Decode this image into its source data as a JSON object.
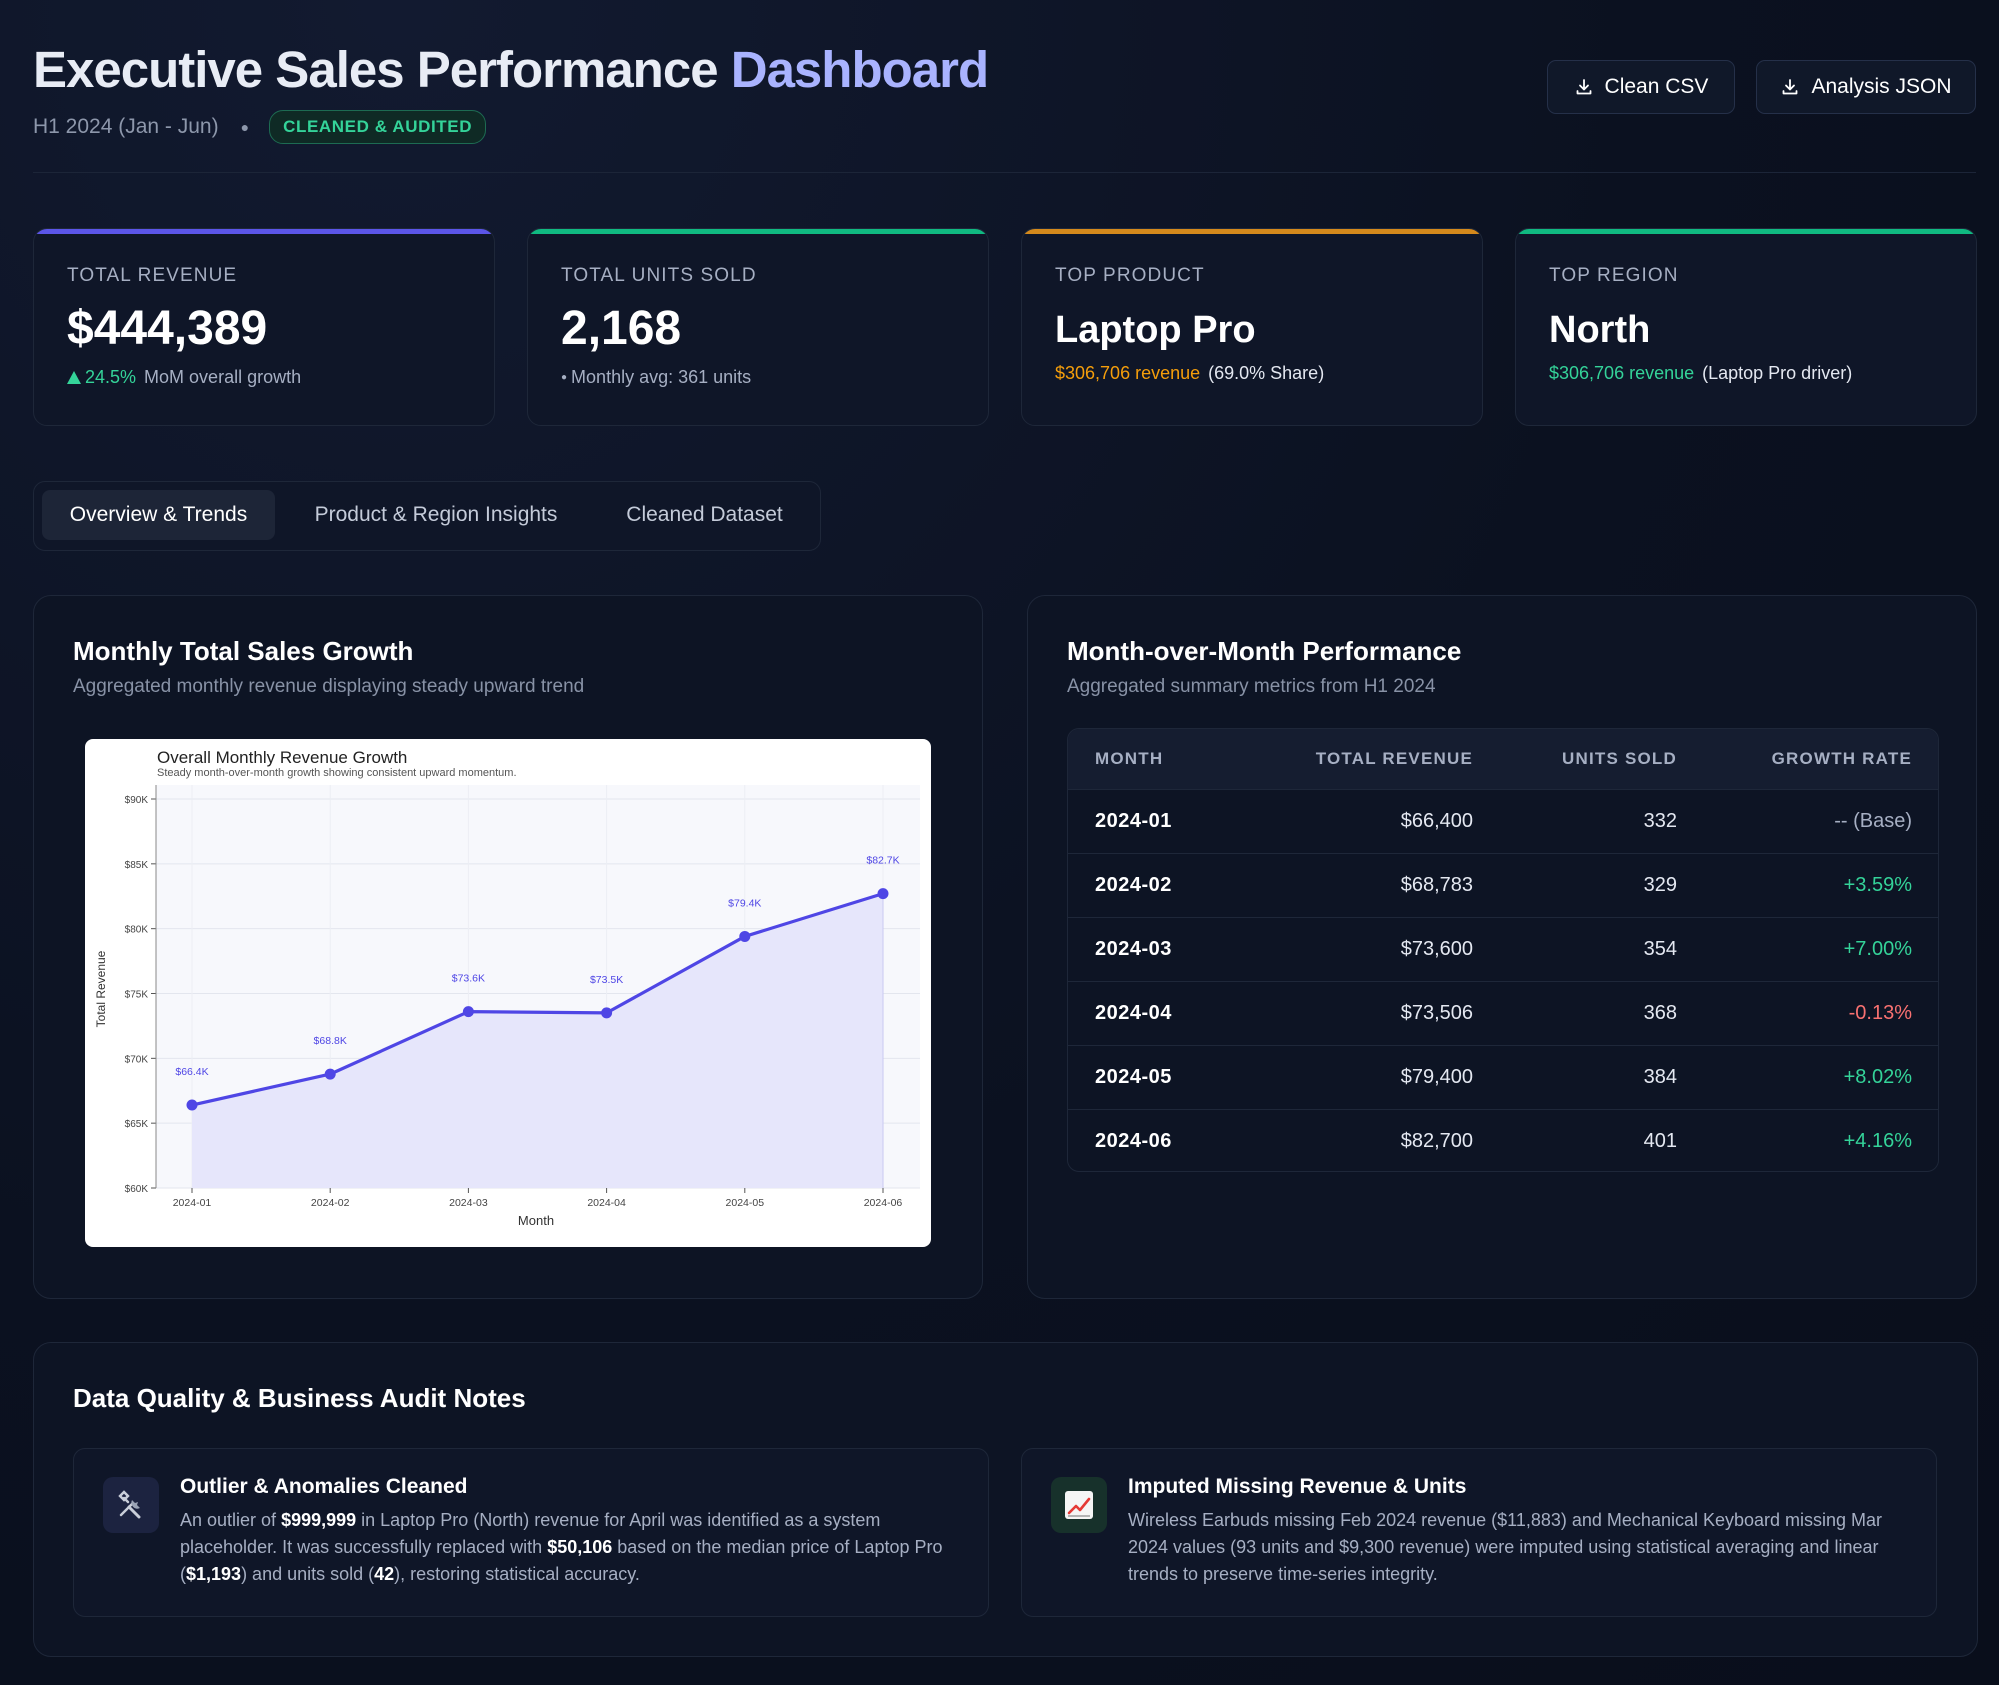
{
  "header": {
    "title_main": "Executive Sales Performance",
    "title_accent": "Dashboard",
    "period": "H1 2024 (Jan - Jun)",
    "badge": "CLEANED & AUDITED",
    "buttons": {
      "csv": "Clean CSV",
      "json": "Analysis JSON"
    }
  },
  "kpis": {
    "revenue": {
      "label": "TOTAL REVENUE",
      "value": "$444,389",
      "delta": "24.5%",
      "delta_text": "MoM overall growth"
    },
    "units": {
      "label": "TOTAL UNITS SOLD",
      "value": "2,168",
      "sub": "Monthly avg: 361 units"
    },
    "product": {
      "label": "TOP PRODUCT",
      "value": "Laptop Pro",
      "highlight": "$306,706 revenue",
      "sub": "(69.0% Share)"
    },
    "region": {
      "label": "TOP REGION",
      "value": "North",
      "highlight": "$306,706 revenue",
      "sub": "(Laptop Pro driver)"
    }
  },
  "tabs": [
    "Overview & Trends",
    "Product & Region Insights",
    "Cleaned Dataset"
  ],
  "growth_panel": {
    "title": "Monthly Total Sales Growth",
    "subtitle": "Aggregated monthly revenue displaying steady upward trend"
  },
  "chart_data": {
    "type": "area",
    "title": "Overall Monthly Revenue Growth",
    "subtitle": "Steady month-over-month growth showing consistent upward momentum.",
    "xlabel": "Month",
    "ylabel": "Total Revenue",
    "categories": [
      "2024-01",
      "2024-02",
      "2024-03",
      "2024-04",
      "2024-05",
      "2024-06"
    ],
    "values": [
      66400,
      68783,
      73600,
      73506,
      79400,
      82700
    ],
    "data_labels": [
      "$66.4K",
      "$68.8K",
      "$73.6K",
      "$73.5K",
      "$79.4K",
      "$82.7K"
    ],
    "yticks": [
      "$60K",
      "$65K",
      "$70K",
      "$75K",
      "$80K",
      "$85K",
      "$90K"
    ],
    "ylim": [
      60000,
      90000
    ],
    "grid": true,
    "color": "#4f46e5"
  },
  "mom_panel": {
    "title": "Month-over-Month Performance",
    "subtitle": "Aggregated summary metrics from H1 2024",
    "headers": [
      "MONTH",
      "TOTAL REVENUE",
      "UNITS SOLD",
      "GROWTH RATE"
    ],
    "rows": [
      {
        "month": "2024-01",
        "revenue": "$66,400",
        "units": "332",
        "growth": "-- (Base)",
        "trend": "base"
      },
      {
        "month": "2024-02",
        "revenue": "$68,783",
        "units": "329",
        "growth": "+3.59%",
        "trend": "up"
      },
      {
        "month": "2024-03",
        "revenue": "$73,600",
        "units": "354",
        "growth": "+7.00%",
        "trend": "up"
      },
      {
        "month": "2024-04",
        "revenue": "$73,506",
        "units": "368",
        "growth": "-0.13%",
        "trend": "down"
      },
      {
        "month": "2024-05",
        "revenue": "$79,400",
        "units": "384",
        "growth": "+8.02%",
        "trend": "up"
      },
      {
        "month": "2024-06",
        "revenue": "$82,700",
        "units": "401",
        "growth": "+4.16%",
        "trend": "up"
      }
    ]
  },
  "audit": {
    "title": "Data Quality & Business Audit Notes",
    "notes": [
      {
        "icon": "tools-icon",
        "title": "Outlier & Anomalies Cleaned",
        "parts": [
          "An outlier of ",
          "$999,999",
          " in Laptop Pro (North) revenue for April was identified as a system placeholder. It was successfully replaced with ",
          "$50,106",
          " based on the median price of Laptop Pro (",
          "$1,193",
          ") and units sold (",
          "42",
          "), restoring statistical accuracy."
        ]
      },
      {
        "icon": "chart-up-icon",
        "title": "Imputed Missing Revenue & Units",
        "text": "Wireless Earbuds missing Feb 2024 revenue ($11,883) and Mechanical Keyboard missing Mar 2024 values (93 units and $9,300 revenue) were imputed using statistical averaging and linear trends to preserve time-series integrity."
      }
    ]
  },
  "colors": {
    "accent": "#a9b3ff",
    "positive": "#34d399",
    "negative": "#f87171",
    "gold": "#f59e0b",
    "bar_revenue": "#5b55e8",
    "bar_units": "#10b981",
    "bar_product": "#d4891c",
    "bar_region": "#10b981"
  }
}
